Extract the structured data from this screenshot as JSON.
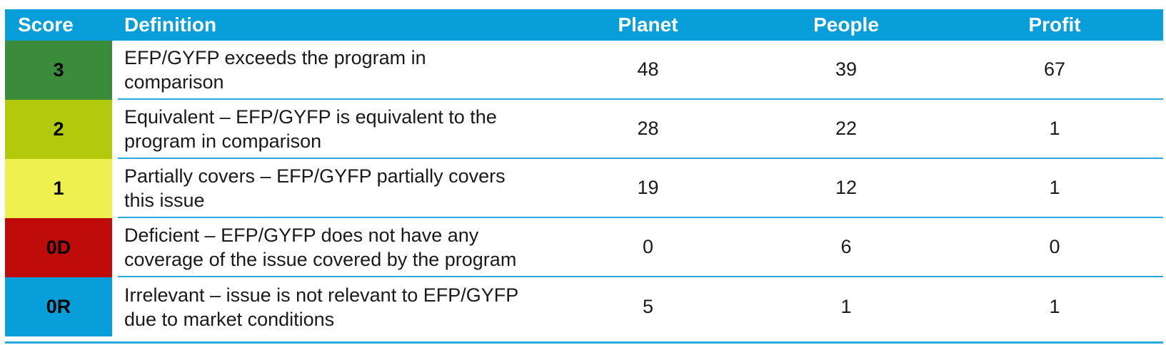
{
  "table": {
    "header": {
      "score": "Score",
      "definition": "Definition",
      "planet": "Planet",
      "people": "People",
      "profit": "Profit"
    },
    "rows": [
      {
        "score": "3",
        "score_color": "#3A8C3B",
        "definition": "EFP/GYFP exceeds the program in\ncomparison",
        "planet": "48",
        "people": "39",
        "profit": "67"
      },
      {
        "score": "2",
        "score_color": "#B3C90B",
        "definition": "Equivalent – EFP/GYFP is equivalent to the\nprogram in comparison",
        "planet": "28",
        "people": "22",
        "profit": "1"
      },
      {
        "score": "1",
        "score_color": "#EDF04E",
        "definition": "Partially covers – EFP/GYFP partially covers\nthis issue",
        "planet": "19",
        "people": "12",
        "profit": "1"
      },
      {
        "score": "0D",
        "score_color": "#C00B0B",
        "definition": "Deficient – EFP/GYFP does not have any\ncoverage of the issue covered by the program",
        "planet": "0",
        "people": "6",
        "profit": "0"
      },
      {
        "score": "0R",
        "score_color": "#089EDA",
        "definition": "Irrelevant – issue is not relevant to EFP/GYFP\ndue to market conditions",
        "planet": "5",
        "people": "1",
        "profit": "1"
      }
    ],
    "colors": {
      "header_bg": "#089EDA",
      "header_text": "#FFFFFF",
      "row_separator": "#29A9E0",
      "body_text": "#1A1A1A",
      "background": "#FFFFFF"
    }
  }
}
